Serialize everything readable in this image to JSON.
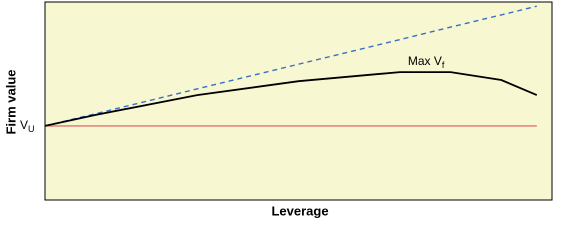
{
  "chart_data": {
    "type": "line",
    "y_label": "Firm value",
    "x_label": "Leverage",
    "x": [
      0,
      10,
      30,
      50,
      70,
      80,
      90,
      97
    ],
    "series": [
      {
        "color": "#e8706e",
        "style": "solid",
        "values": [
          37.4,
          37.4,
          37.4,
          37.4,
          37.4,
          37.4,
          37.4,
          37.4
        ]
      },
      {
        "color": "#3a6fc4",
        "style": "dashed",
        "values": [
          37.4,
          43.6,
          56.1,
          68.6,
          81.0,
          87.3,
          93.5,
          97.9
        ]
      },
      {
        "color": "#000000",
        "style": "solid",
        "values": [
          37.4,
          43.0,
          53.0,
          60.0,
          64.6,
          64.6,
          60.6,
          53.0
        ]
      }
    ],
    "annotations": [
      {
        "text": "V",
        "sub": "U"
      },
      {
        "text": "Max V",
        "sub": "f"
      }
    ],
    "xlim": [
      0,
      100
    ],
    "ylim": [
      0,
      100
    ],
    "background": "#f7f7d2"
  }
}
